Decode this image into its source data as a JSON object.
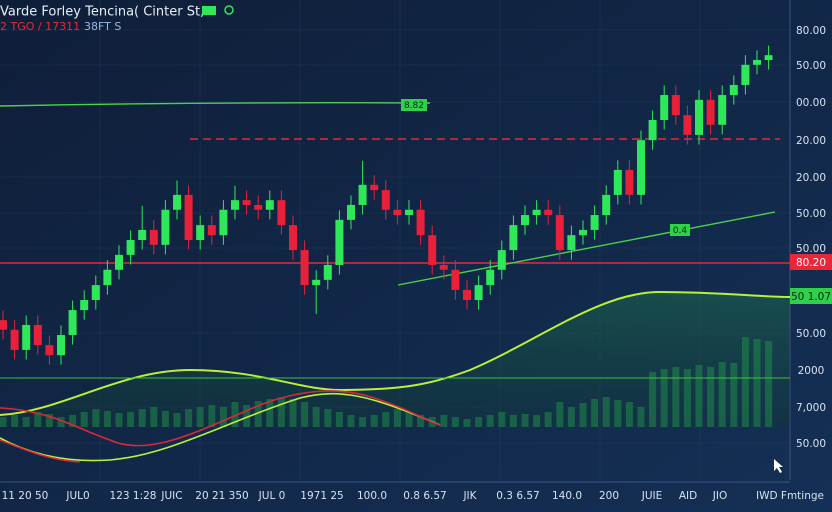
{
  "chart_data": {
    "type": "candlestick",
    "title": "Varde Forley Tencina( Cinter St,",
    "subtitle_parts": [
      "2 TGO / 17311",
      "38FT S"
    ],
    "ylim": [
      0,
      100
    ],
    "open": [
      33.3,
      31.3,
      27.1,
      32.3,
      28.1,
      26.0,
      30.2,
      35.4,
      37.5,
      40.6,
      43.8,
      46.9,
      50.0,
      52.1,
      49.0,
      56.3,
      59.4,
      50.0,
      53.1,
      51.0,
      56.3,
      58.3,
      57.3,
      56.3,
      58.3,
      53.1,
      47.9,
      40.6,
      41.7,
      44.8,
      54.2,
      57.3,
      61.5,
      60.4,
      56.3,
      55.2,
      56.3,
      51.0,
      44.8,
      43.8,
      39.6,
      37.5,
      40.6,
      43.8,
      47.9,
      53.1,
      55.2,
      56.3,
      55.2,
      47.9,
      51.0,
      52.1,
      55.2,
      59.4,
      64.6,
      59.4,
      70.8,
      75.0,
      80.2,
      76.0,
      71.9,
      79.2,
      74.0,
      80.2,
      82.3,
      86.5,
      87.5
    ],
    "high": [
      35.3,
      33.3,
      34.3,
      34.3,
      30.1,
      32.2,
      37.4,
      39.5,
      42.6,
      45.8,
      48.9,
      52.0,
      57.1,
      54.1,
      58.3,
      62.4,
      61.4,
      55.1,
      55.1,
      58.3,
      61.3,
      60.3,
      59.3,
      60.3,
      60.3,
      55.1,
      49.9,
      43.7,
      46.8,
      56.2,
      59.3,
      66.5,
      63.5,
      62.4,
      58.3,
      58.3,
      58.3,
      53.0,
      46.8,
      45.8,
      41.6,
      42.6,
      45.8,
      49.9,
      55.1,
      57.2,
      58.3,
      58.3,
      57.2,
      53.0,
      54.1,
      57.2,
      61.4,
      66.6,
      66.6,
      72.8,
      77.0,
      82.2,
      82.2,
      78.0,
      81.2,
      81.2,
      82.2,
      84.3,
      88.5,
      89.5,
      90.5
    ],
    "low": [
      29.3,
      25.1,
      25.1,
      26.1,
      24.0,
      24.0,
      28.2,
      33.4,
      35.5,
      38.6,
      41.8,
      44.9,
      48.0,
      47.0,
      47.0,
      54.3,
      48.0,
      48.0,
      49.0,
      49.0,
      54.3,
      55.3,
      54.3,
      54.3,
      51.1,
      45.9,
      38.6,
      34.6,
      39.7,
      42.8,
      52.2,
      55.3,
      58.4,
      54.3,
      53.2,
      53.2,
      49.0,
      42.8,
      41.8,
      37.6,
      35.5,
      35.5,
      38.6,
      41.8,
      45.9,
      51.1,
      53.2,
      53.2,
      45.9,
      45.9,
      49.0,
      50.1,
      53.2,
      57.4,
      57.4,
      57.4,
      68.8,
      73.0,
      74.0,
      69.9,
      69.9,
      72.0,
      72.0,
      78.2,
      80.3,
      84.5,
      85.5
    ],
    "close": [
      31.3,
      27.1,
      32.3,
      28.1,
      26.0,
      30.2,
      35.4,
      37.5,
      40.6,
      43.8,
      46.9,
      50.0,
      52.1,
      49.0,
      56.3,
      59.4,
      50.0,
      53.1,
      51.0,
      56.3,
      58.3,
      57.3,
      56.3,
      58.3,
      53.1,
      47.9,
      40.6,
      41.7,
      44.8,
      54.2,
      57.3,
      61.5,
      60.4,
      56.3,
      55.2,
      56.3,
      51.0,
      44.8,
      43.8,
      39.6,
      37.5,
      40.6,
      43.8,
      47.9,
      53.1,
      55.2,
      56.3,
      55.2,
      47.9,
      51.0,
      52.1,
      55.2,
      59.4,
      64.6,
      59.4,
      70.8,
      75.0,
      80.2,
      76.0,
      71.9,
      79.2,
      74.0,
      80.2,
      82.3,
      86.5,
      87.5,
      88.5
    ],
    "up_color": "#2ee85a",
    "down_color": "#e8203a",
    "volume_ylim": [
      0,
      10
    ],
    "volume": [
      1.0,
      1.2,
      1.0,
      1.5,
      1.3,
      1.0,
      1.2,
      1.5,
      1.8,
      1.6,
      1.4,
      1.5,
      1.8,
      2.0,
      1.6,
      1.4,
      1.8,
      2.0,
      2.2,
      2.0,
      2.5,
      2.2,
      2.6,
      2.8,
      3.0,
      2.8,
      2.5,
      2.0,
      1.8,
      1.5,
      1.2,
      1.0,
      1.2,
      1.5,
      1.8,
      1.5,
      1.2,
      1.0,
      1.2,
      1.0,
      0.8,
      1.0,
      1.2,
      1.5,
      1.2,
      1.3,
      1.2,
      1.5,
      2.5,
      2.0,
      2.4,
      2.8,
      3.0,
      2.7,
      2.5,
      2.0,
      5.5,
      5.8,
      6.0,
      5.8,
      6.2,
      6.0,
      6.5,
      6.4,
      9.0,
      8.8,
      8.6
    ],
    "price_labels": [
      "80.00",
      "50.00",
      "00.00",
      "20.00",
      "20.00",
      "50.00",
      "50.00",
      "80.20",
      "50 1.07",
      "50.00",
      "2000",
      "7,000",
      "50.00"
    ],
    "x_axis_labels": [
      "11 20 50",
      "JUL0",
      "123 1:28",
      "JUIC",
      "20 21 350",
      "JUL 0",
      "1971 25",
      "100.0",
      "0.8 6.57",
      "JIK",
      "0.3 6.57",
      "140.0",
      "200",
      "JUIE",
      "AID",
      "JIO",
      "IWD Fmtinge"
    ],
    "line_tags": [
      "8.82",
      "0.4"
    ]
  }
}
